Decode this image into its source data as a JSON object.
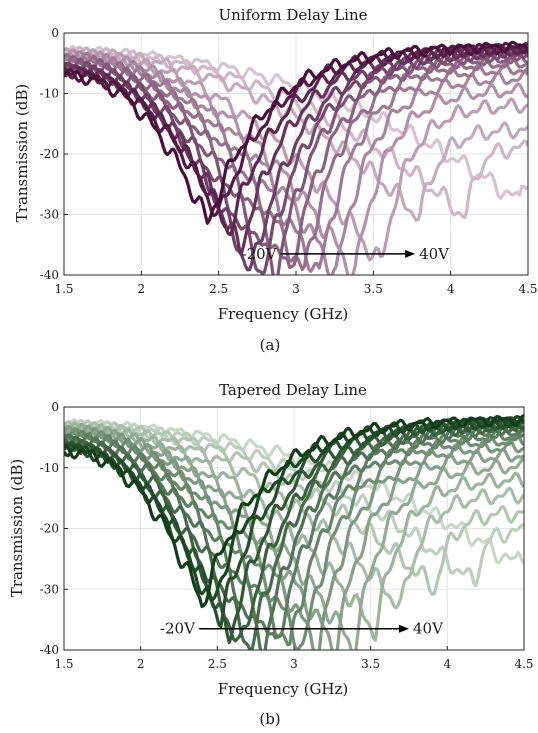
{
  "chart_data": [
    {
      "type": "line",
      "title": "Uniform Delay Line",
      "xlabel": "Frequency (GHz)",
      "ylabel": "Transmission (dB)",
      "xlim": [
        1.5,
        4.5
      ],
      "ylim": [
        -40,
        0
      ],
      "xticks": [
        1.5,
        2,
        2.5,
        3,
        3.5,
        4,
        4.5
      ],
      "xtick_labels": [
        "1.5",
        "2",
        "2.5",
        "3",
        "3.5",
        "4",
        "4.5"
      ],
      "yticks": [
        0,
        -10,
        -20,
        -30,
        -40
      ],
      "ytick_labels": [
        "0",
        "-10",
        "-20",
        "-30",
        "-40"
      ],
      "grid": true,
      "legend": "none",
      "panel_label": "(a)",
      "annotation": {
        "start_label": "-20V",
        "end_label": "40V",
        "arrow_from_x": 2.9,
        "arrow_to_x": 3.77,
        "y": -36.5
      },
      "color_dark": "#4a0e3c",
      "color_light": "#d8c2d2",
      "series_count": 16,
      "series": [
        {
          "label": "-20V",
          "notch_freq_ghz": 2.43,
          "notch_depth_db": -31.5,
          "left_edge_db": -7.0,
          "right_edge_db": -2.2
        },
        {
          "notch_freq_ghz": 2.5,
          "notch_depth_db": -30.5,
          "left_edge_db": -6.7,
          "right_edge_db": -2.4
        },
        {
          "notch_freq_ghz": 2.57,
          "notch_depth_db": -33.0,
          "left_edge_db": -6.3,
          "right_edge_db": -2.6
        },
        {
          "notch_freq_ghz": 2.64,
          "notch_depth_db": -36.0,
          "left_edge_db": -6.0,
          "right_edge_db": -2.8
        },
        {
          "notch_freq_ghz": 2.71,
          "notch_depth_db": -40.0,
          "left_edge_db": -5.7,
          "right_edge_db": -3.1
        },
        {
          "notch_freq_ghz": 2.79,
          "notch_depth_db": -40.0,
          "left_edge_db": -5.4,
          "right_edge_db": -3.4
        },
        {
          "notch_freq_ghz": 2.87,
          "notch_depth_db": -40.0,
          "left_edge_db": -5.1,
          "right_edge_db": -3.8
        },
        {
          "notch_freq_ghz": 2.96,
          "notch_depth_db": -40.0,
          "left_edge_db": -4.8,
          "right_edge_db": -4.3
        },
        {
          "notch_freq_ghz": 3.05,
          "notch_depth_db": -40.0,
          "left_edge_db": -4.5,
          "right_edge_db": -5.0
        },
        {
          "notch_freq_ghz": 3.15,
          "notch_depth_db": -40.0,
          "left_edge_db": -4.2,
          "right_edge_db": -6.0
        },
        {
          "notch_freq_ghz": 3.26,
          "notch_depth_db": -40.0,
          "left_edge_db": -4.0,
          "right_edge_db": -7.5
        },
        {
          "notch_freq_ghz": 3.38,
          "notch_depth_db": -40.0,
          "left_edge_db": -3.8,
          "right_edge_db": -9.5
        },
        {
          "notch_freq_ghz": 3.55,
          "notch_depth_db": -38.5,
          "left_edge_db": -3.6,
          "right_edge_db": -12.0
        },
        {
          "notch_freq_ghz": 3.8,
          "notch_depth_db": -30.5,
          "left_edge_db": -3.4,
          "right_edge_db": -16.0
        },
        {
          "notch_freq_ghz": 4.1,
          "notch_depth_db": -30.5,
          "left_edge_db": -3.3,
          "right_edge_db": -19.0
        },
        {
          "label": "40V",
          "notch_freq_ghz": 4.45,
          "notch_depth_db": -28.0,
          "left_edge_db": -3.2,
          "right_edge_db": -24.0
        }
      ]
    },
    {
      "type": "line",
      "title": "Tapered Delay Line",
      "xlabel": "Frequency (GHz)",
      "ylabel": "Transmission (dB)",
      "xlim": [
        1.5,
        4.5
      ],
      "ylim": [
        -40,
        0
      ],
      "xticks": [
        1.5,
        2,
        2.5,
        3,
        3.5,
        4,
        4.5
      ],
      "xtick_labels": [
        "1.5",
        "2",
        "2.5",
        "3",
        "3.5",
        "4",
        "4.5"
      ],
      "yticks": [
        0,
        -10,
        -20,
        -30,
        -40
      ],
      "ytick_labels": [
        "0",
        "-10",
        "-20",
        "-30",
        "-40"
      ],
      "grid": true,
      "legend": "none",
      "panel_label": "(b)",
      "annotation": {
        "start_label": "-20V",
        "end_label": "40V",
        "arrow_from_x": 2.38,
        "arrow_to_x": 3.75,
        "y": -36.5
      },
      "color_dark": "#0f3d17",
      "color_light": "#c8d8c8",
      "series_count": 18,
      "series": [
        {
          "label": "-20V",
          "notch_freq_ghz": 2.4,
          "notch_depth_db": -32.5,
          "left_edge_db": -7.2,
          "right_edge_db": -2.1
        },
        {
          "notch_freq_ghz": 2.46,
          "notch_depth_db": -33.0,
          "left_edge_db": -6.9,
          "right_edge_db": -2.3
        },
        {
          "notch_freq_ghz": 2.52,
          "notch_depth_db": -35.0,
          "left_edge_db": -6.6,
          "right_edge_db": -2.5
        },
        {
          "notch_freq_ghz": 2.58,
          "notch_depth_db": -38.0,
          "left_edge_db": -6.3,
          "right_edge_db": -2.7
        },
        {
          "notch_freq_ghz": 2.65,
          "notch_depth_db": -40.0,
          "left_edge_db": -6.0,
          "right_edge_db": -3.0
        },
        {
          "notch_freq_ghz": 2.72,
          "notch_depth_db": -40.0,
          "left_edge_db": -5.7,
          "right_edge_db": -3.3
        },
        {
          "notch_freq_ghz": 2.8,
          "notch_depth_db": -40.0,
          "left_edge_db": -5.4,
          "right_edge_db": -3.7
        },
        {
          "notch_freq_ghz": 2.88,
          "notch_depth_db": -40.0,
          "left_edge_db": -5.1,
          "right_edge_db": -4.2
        },
        {
          "notch_freq_ghz": 2.97,
          "notch_depth_db": -40.0,
          "left_edge_db": -4.8,
          "right_edge_db": -4.8
        },
        {
          "notch_freq_ghz": 3.06,
          "notch_depth_db": -40.0,
          "left_edge_db": -4.5,
          "right_edge_db": -5.6
        },
        {
          "notch_freq_ghz": 3.16,
          "notch_depth_db": -40.0,
          "left_edge_db": -4.2,
          "right_edge_db": -6.6
        },
        {
          "notch_freq_ghz": 3.27,
          "notch_depth_db": -40.0,
          "left_edge_db": -4.0,
          "right_edge_db": -8.0
        },
        {
          "notch_freq_ghz": 3.39,
          "notch_depth_db": -40.0,
          "left_edge_db": -3.8,
          "right_edge_db": -9.8
        },
        {
          "notch_freq_ghz": 3.53,
          "notch_depth_db": -37.0,
          "left_edge_db": -3.6,
          "right_edge_db": -12.0
        },
        {
          "notch_freq_ghz": 3.7,
          "notch_depth_db": -33.0,
          "left_edge_db": -3.4,
          "right_edge_db": -14.5
        },
        {
          "notch_freq_ghz": 3.92,
          "notch_depth_db": -30.0,
          "left_edge_db": -3.2,
          "right_edge_db": -17.5
        },
        {
          "notch_freq_ghz": 4.18,
          "notch_depth_db": -29.0,
          "left_edge_db": -3.1,
          "right_edge_db": -20.5
        },
        {
          "label": "40V",
          "notch_freq_ghz": 4.45,
          "notch_depth_db": -26.0,
          "left_edge_db": -3.0,
          "right_edge_db": -24.0
        }
      ]
    }
  ]
}
